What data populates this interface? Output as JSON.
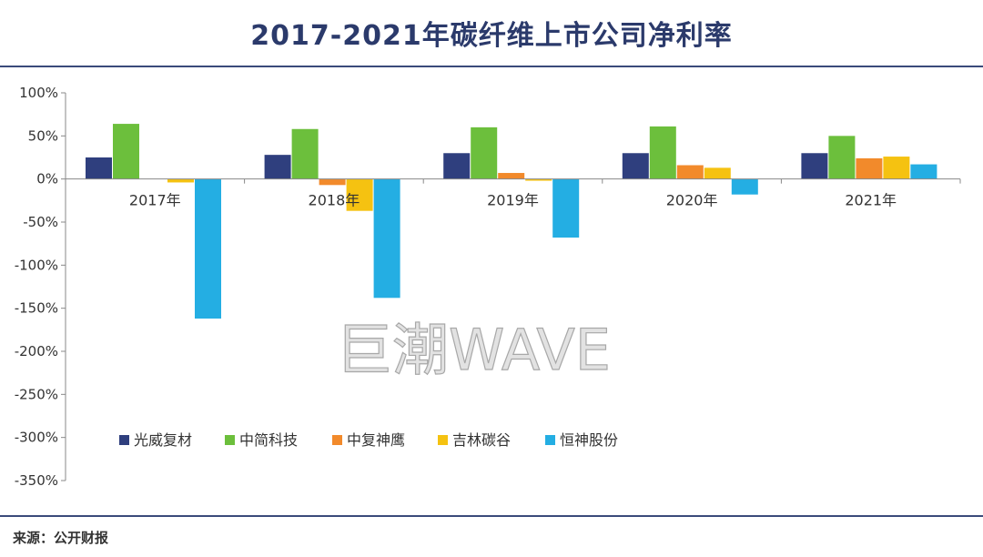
{
  "source": "来源：公开财报",
  "watermark": "巨潮WAVE",
  "colors": {
    "光威复材": "#2f3f7e",
    "中简科技": "#6cbf3c",
    "中复神鹰": "#f28a2b",
    "吉林碳谷": "#f5c211",
    "恒神股份": "#24aee3"
  },
  "chart_data": {
    "type": "bar",
    "title": "2017-2021年碳纤维上市公司净利率",
    "categories": [
      "2017年",
      "2018年",
      "2019年",
      "2020年",
      "2021年"
    ],
    "ylim": [
      -350,
      100
    ],
    "yticks": [
      100,
      50,
      0,
      -50,
      -100,
      -150,
      -200,
      -250,
      -300,
      -350
    ],
    "ytick_labels": [
      "100%",
      "50%",
      "0%",
      "-50%",
      "-100%",
      "-150%",
      "-200%",
      "-250%",
      "-300%",
      "-350%"
    ],
    "legend_position": "bottom-left",
    "grid": false,
    "series": [
      {
        "name": "光威复材",
        "values": [
          25,
          28,
          30,
          30,
          30
        ]
      },
      {
        "name": "中简科技",
        "values": [
          64,
          58,
          60,
          61,
          50
        ]
      },
      {
        "name": "中复神鹰",
        "values": [
          0,
          -7,
          7,
          16,
          24
        ]
      },
      {
        "name": "吉林碳谷",
        "values": [
          -4,
          -37,
          -2,
          13,
          26
        ]
      },
      {
        "name": "恒神股份",
        "values": [
          -162,
          -138,
          -68,
          -18,
          17
        ]
      }
    ]
  }
}
